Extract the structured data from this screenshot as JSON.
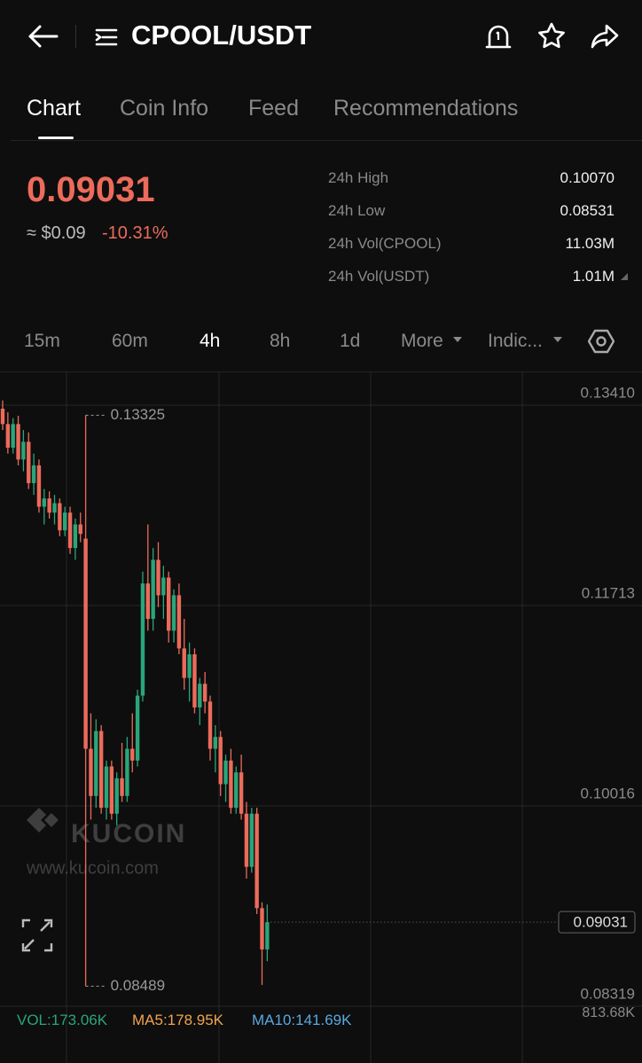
{
  "header": {
    "title": "CPOOL/USDT"
  },
  "tabs": [
    "Chart",
    "Coin Info",
    "Feed",
    "Recommendations"
  ],
  "price": {
    "last": "0.09031",
    "fiat": "≈ $0.09",
    "change": "-10.31%"
  },
  "stats": [
    {
      "label": "24h High",
      "value": "0.10070"
    },
    {
      "label": "24h Low",
      "value": "0.08531"
    },
    {
      "label": "24h Vol(CPOOL)",
      "value": "11.03M"
    },
    {
      "label": "24h Vol(USDT)",
      "value": "1.01M"
    }
  ],
  "timeframes": [
    "15m",
    "60m",
    "4h",
    "8h",
    "1d",
    "More",
    "Indic..."
  ],
  "watermark": {
    "brand": "KUCOIN",
    "url": "www.kucoin.com"
  },
  "volume": {
    "vol": "VOL:173.06K",
    "ma5": "MA5:178.95K",
    "ma10": "MA10:141.69K",
    "axis_max": "813.68K"
  },
  "chart_data": {
    "type": "candlestick",
    "up_color": "#2aa57a",
    "down_color": "#ec6b5b",
    "ylim": [
      0.08319,
      0.13688
    ],
    "yticks": [
      {
        "value": 0.1341,
        "label": "0.13410"
      },
      0.11713,
      0.10016,
      0.08319
    ],
    "high_mark": 0.13325,
    "low_mark": 0.08489,
    "last_price": 0.09031,
    "open": [
      0.1338,
      0.1325,
      0.1305,
      0.1325,
      0.1295,
      0.131,
      0.1275,
      0.129,
      0.1255,
      0.1262,
      0.125,
      0.1258,
      0.1235,
      0.125,
      0.122,
      0.124,
      0.1228,
      0.105,
      0.101,
      0.1065,
      0.1,
      0.1035,
      0.0995,
      0.1025,
      0.101,
      0.105,
      0.104,
      0.1095,
      0.119,
      0.116,
      0.121,
      0.118,
      0.1195,
      0.115,
      0.118,
      0.1135,
      0.111,
      0.113,
      0.1085,
      0.1105,
      0.109,
      0.105,
      0.106,
      0.102,
      0.104,
      0.1,
      0.103,
      0.0995,
      0.095,
      0.0995,
      0.0915,
      0.088
    ],
    "high": [
      0.1345,
      0.1335,
      0.133,
      0.1332,
      0.132,
      0.1318,
      0.13,
      0.1295,
      0.127,
      0.1268,
      0.1265,
      0.1262,
      0.1255,
      0.1255,
      0.1245,
      0.125,
      0.13325,
      0.108,
      0.1075,
      0.107,
      0.104,
      0.104,
      0.103,
      0.1055,
      0.106,
      0.108,
      0.11,
      0.12,
      0.124,
      0.122,
      0.1225,
      0.1205,
      0.12,
      0.1185,
      0.119,
      0.116,
      0.114,
      0.1135,
      0.111,
      0.1115,
      0.1095,
      0.107,
      0.1065,
      0.1045,
      0.105,
      0.1035,
      0.1045,
      0.1005,
      0.1,
      0.1,
      0.092,
      0.0918
    ],
    "low": [
      0.132,
      0.13,
      0.13,
      0.129,
      0.1285,
      0.127,
      0.1265,
      0.125,
      0.124,
      0.1245,
      0.124,
      0.123,
      0.123,
      0.1215,
      0.121,
      0.1225,
      0.08489,
      0.099,
      0.1,
      0.0995,
      0.099,
      0.099,
      0.0985,
      0.1005,
      0.1005,
      0.103,
      0.1035,
      0.109,
      0.115,
      0.115,
      0.117,
      0.116,
      0.114,
      0.114,
      0.113,
      0.11,
      0.109,
      0.108,
      0.107,
      0.108,
      0.104,
      0.103,
      0.101,
      0.1005,
      0.0995,
      0.0995,
      0.099,
      0.094,
      0.0945,
      0.091,
      0.085,
      0.087
    ],
    "close": [
      0.1325,
      0.1305,
      0.1325,
      0.1295,
      0.131,
      0.1275,
      0.129,
      0.1255,
      0.1262,
      0.125,
      0.1258,
      0.1235,
      0.125,
      0.122,
      0.124,
      0.1232,
      0.105,
      0.101,
      0.1065,
      0.1,
      0.1035,
      0.0995,
      0.1025,
      0.101,
      0.105,
      0.104,
      0.1095,
      0.119,
      0.116,
      0.121,
      0.118,
      0.1195,
      0.115,
      0.118,
      0.1135,
      0.111,
      0.113,
      0.1085,
      0.1105,
      0.109,
      0.105,
      0.106,
      0.102,
      0.104,
      0.1,
      0.103,
      0.0995,
      0.095,
      0.0995,
      0.0915,
      0.088,
      0.09031
    ]
  }
}
